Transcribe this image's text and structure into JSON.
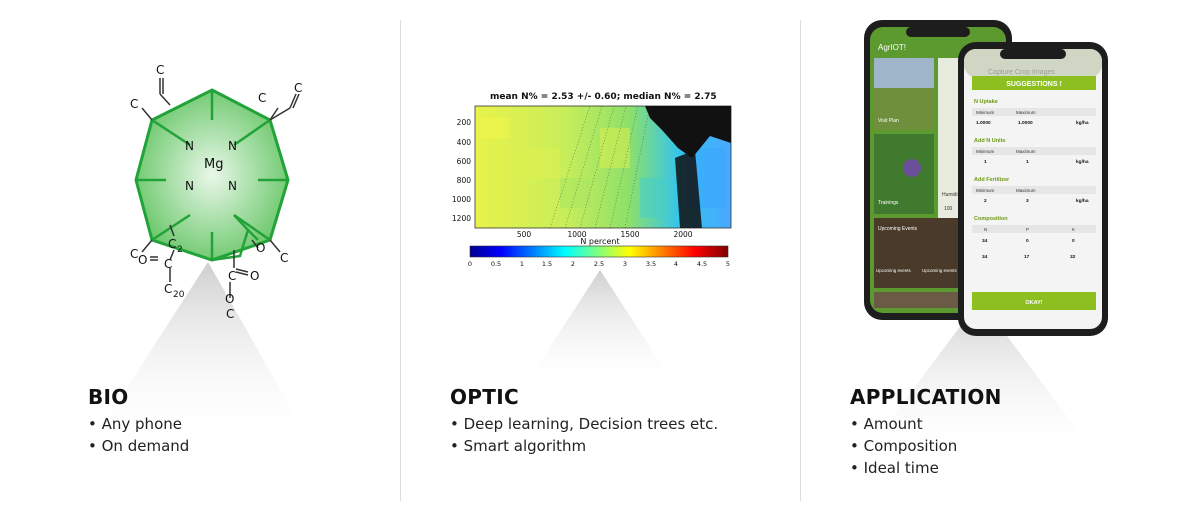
{
  "panels": [
    {
      "title": "BIO",
      "bullets": [
        "Any phone",
        "On demand"
      ]
    },
    {
      "title": "OPTIC",
      "bullets": [
        "Deep learning, Decision trees etc.",
        "Smart algorithm"
      ]
    },
    {
      "title": "APPLICATION",
      "bullets": [
        "Amount",
        "Composition",
        "Ideal time"
      ]
    }
  ],
  "molecule": {
    "atoms": {
      "mg": "Mg",
      "n": "N",
      "c": "C",
      "o": "O",
      "c2_sub": "2",
      "c20_sub": "20"
    }
  },
  "heatmap": {
    "title": "mean N% = 2.53 +/- 0.60;  median N% = 2.75",
    "y_ticks": [
      "200",
      "400",
      "600",
      "800",
      "1000",
      "1200"
    ],
    "x_ticks": [
      "500",
      "1000",
      "1500",
      "2000"
    ],
    "xlabel": "N percent",
    "colorbar_ticks": [
      "0",
      "0.5",
      "1",
      "1.5",
      "2",
      "2.5",
      "3",
      "3.5",
      "4",
      "4.5",
      "5"
    ]
  },
  "phone_back": {
    "app_title": "AgrIOT!",
    "tiles": [
      "Visit Plan",
      "Trainings",
      "Upcoming Events",
      "Upcoming\nevents",
      "Upcoming\nevents"
    ],
    "side_label": "Humidi",
    "side_value": "100"
  },
  "phone_front": {
    "header_ghost": "Capture Crop Images",
    "title": "SUGGESTIONS !",
    "sections": [
      {
        "label": "N Uptake",
        "cols": [
          "Minimum",
          "Maximum",
          ""
        ],
        "row": [
          "1.0000",
          "1.0000",
          "kg/ha"
        ]
      },
      {
        "label": "Add N Units",
        "cols": [
          "Minimum",
          "Maximum",
          ""
        ],
        "row": [
          "1",
          "1",
          "kg/ha"
        ]
      },
      {
        "label": "Add Fertilizer",
        "cols": [
          "Minimum",
          "Maximum",
          ""
        ],
        "row": [
          "2",
          "3",
          "kg/ha"
        ]
      },
      {
        "label": "Composition",
        "cols": [
          "N",
          "P",
          "K"
        ],
        "row": [
          "34",
          "0",
          "0"
        ],
        "row2": [
          "34",
          "17",
          "32"
        ]
      }
    ],
    "ok_label": "OKAY!"
  }
}
